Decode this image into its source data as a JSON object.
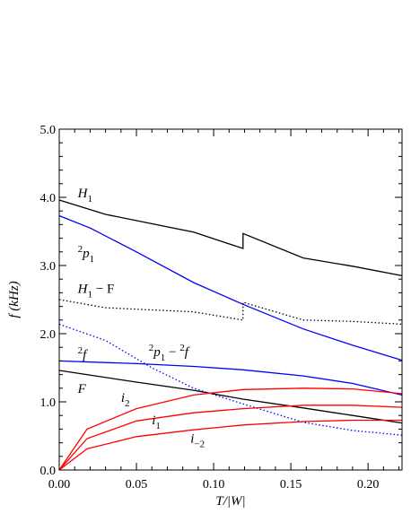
{
  "chart_data": {
    "type": "line",
    "xlabel": "T/|W|",
    "ylabel": "f (kHz)",
    "xlim": [
      0.0,
      0.222
    ],
    "ylim": [
      0.0,
      5.0
    ],
    "xticks": [
      "0.00",
      "0.05",
      "0.10",
      "0.15",
      "0.20"
    ],
    "yticks": [
      "0.0",
      "1.0",
      "2.0",
      "3.0",
      "4.0",
      "5.0"
    ],
    "grid": false,
    "legend": "none",
    "series": [
      {
        "label": "H_1",
        "color": "#000000",
        "style": "solid",
        "points": [
          [
            0.0,
            3.96
          ],
          [
            0.03,
            3.75
          ],
          [
            0.087,
            3.49
          ],
          [
            0.119,
            3.25
          ],
          [
            0.119,
            3.47
          ],
          [
            0.158,
            3.11
          ],
          [
            0.19,
            2.99
          ],
          [
            0.222,
            2.85
          ]
        ]
      },
      {
        "label": "2p_1",
        "color": "#0000ff",
        "style": "solid",
        "points": [
          [
            0.0,
            3.73
          ],
          [
            0.02,
            3.55
          ],
          [
            0.05,
            3.2
          ],
          [
            0.087,
            2.75
          ],
          [
            0.119,
            2.43
          ],
          [
            0.158,
            2.07
          ],
          [
            0.19,
            1.83
          ],
          [
            0.222,
            1.61
          ]
        ]
      },
      {
        "label": "H_1 - F",
        "color": "#000000",
        "style": "dotted",
        "points": [
          [
            0.0,
            2.5
          ],
          [
            0.03,
            2.38
          ],
          [
            0.087,
            2.32
          ],
          [
            0.119,
            2.2
          ],
          [
            0.119,
            2.46
          ],
          [
            0.158,
            2.2
          ],
          [
            0.19,
            2.18
          ],
          [
            0.222,
            2.14
          ]
        ]
      },
      {
        "label": "2f",
        "color": "#0000ff",
        "style": "dotted",
        "points": [
          [
            0.0,
            2.14
          ],
          [
            0.03,
            1.9
          ],
          [
            0.06,
            1.5
          ],
          [
            0.087,
            1.2
          ],
          [
            0.119,
            0.97
          ],
          [
            0.158,
            0.7
          ],
          [
            0.19,
            0.58
          ],
          [
            0.222,
            0.51
          ]
        ]
      },
      {
        "label": "2p_1 - 2f",
        "color": "#0000ff",
        "style": "solid",
        "points": [
          [
            0.0,
            1.6
          ],
          [
            0.05,
            1.56
          ],
          [
            0.087,
            1.52
          ],
          [
            0.119,
            1.47
          ],
          [
            0.158,
            1.38
          ],
          [
            0.19,
            1.27
          ],
          [
            0.222,
            1.1
          ]
        ]
      },
      {
        "label": "F",
        "color": "#000000",
        "style": "solid",
        "points": [
          [
            0.0,
            1.46
          ],
          [
            0.05,
            1.29
          ],
          [
            0.087,
            1.17
          ],
          [
            0.119,
            1.04
          ],
          [
            0.158,
            0.91
          ],
          [
            0.19,
            0.8
          ],
          [
            0.222,
            0.69
          ]
        ]
      },
      {
        "label": "i_2",
        "color": "#ff0000",
        "style": "solid",
        "points": [
          [
            0.0,
            0.0
          ],
          [
            0.018,
            0.6
          ],
          [
            0.05,
            0.9
          ],
          [
            0.087,
            1.1
          ],
          [
            0.119,
            1.18
          ],
          [
            0.158,
            1.2
          ],
          [
            0.19,
            1.19
          ],
          [
            0.222,
            1.12
          ]
        ]
      },
      {
        "label": "i_1",
        "color": "#ff0000",
        "style": "solid",
        "points": [
          [
            0.0,
            0.0
          ],
          [
            0.018,
            0.46
          ],
          [
            0.05,
            0.72
          ],
          [
            0.087,
            0.84
          ],
          [
            0.119,
            0.9
          ],
          [
            0.158,
            0.95
          ],
          [
            0.19,
            0.95
          ],
          [
            0.222,
            0.92
          ]
        ]
      },
      {
        "label": "i_-2",
        "color": "#ff0000",
        "style": "solid",
        "points": [
          [
            0.0,
            0.0
          ],
          [
            0.018,
            0.31
          ],
          [
            0.05,
            0.49
          ],
          [
            0.087,
            0.59
          ],
          [
            0.119,
            0.66
          ],
          [
            0.158,
            0.71
          ],
          [
            0.19,
            0.73
          ],
          [
            0.222,
            0.73
          ]
        ]
      }
    ],
    "annotations": [
      {
        "text": "H",
        "sub": "1",
        "pre": "",
        "x": 0.012,
        "y": 4.0
      },
      {
        "text": "p",
        "sub": "1",
        "pre": "2",
        "x": 0.012,
        "y": 3.12
      },
      {
        "text": "H",
        "sub": "1",
        "pre": "",
        "tail": " − F",
        "x": 0.012,
        "y": 2.6
      },
      {
        "text": "f",
        "sub": "",
        "pre": "2",
        "x": 0.012,
        "y": 1.63
      },
      {
        "text": "p",
        "sub": "1",
        "pre": "2",
        "tail": " − ",
        "pre2": "2",
        "tail2": "f",
        "x": 0.058,
        "y": 1.67
      },
      {
        "text": "F",
        "sub": "",
        "pre": "",
        "x": 0.012,
        "y": 1.13
      },
      {
        "text": "i",
        "sub": "2",
        "pre": "",
        "x": 0.04,
        "y": 1.0
      },
      {
        "text": "i",
        "sub": "1",
        "pre": "",
        "x": 0.06,
        "y": 0.67
      },
      {
        "text": "i",
        "sub": "−2",
        "pre": "",
        "x": 0.085,
        "y": 0.4
      }
    ]
  }
}
